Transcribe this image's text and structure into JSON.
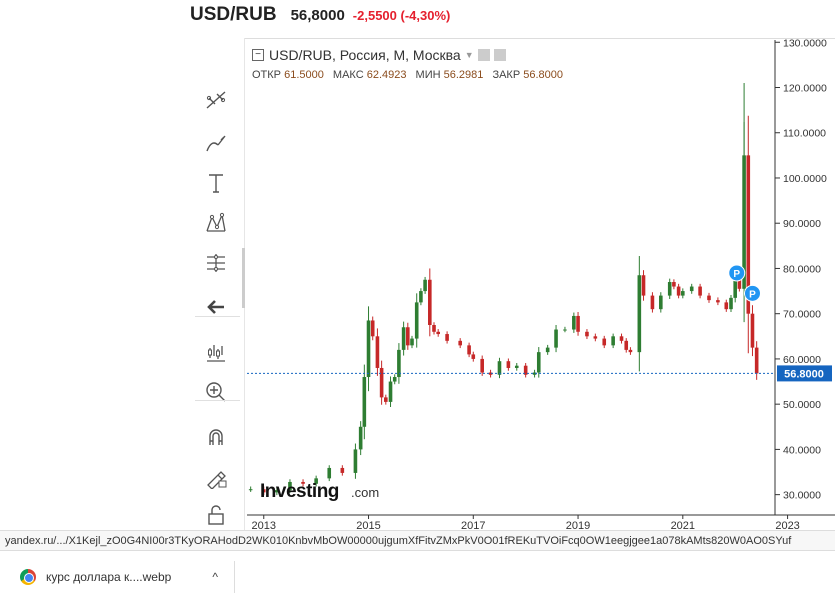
{
  "quote": {
    "symbol": "USD/RUB",
    "price": "56,8000",
    "change": "-2,5500 (-4,30%)",
    "change_color": "#e5202e"
  },
  "legend": {
    "title": "USD/RUB, Россия, M, Москва",
    "open_label": "ОТКР",
    "open": "61.5000",
    "high_label": "МАКС",
    "high": "62.4923",
    "low_label": "МИН",
    "low": "56.2981",
    "close_label": "ЗАКР",
    "close": "56.8000"
  },
  "toolbar": {
    "icons": [
      "trend-line-icon",
      "brush-icon",
      "text-icon",
      "pattern-icon",
      "measure-icon",
      "back-arrow-icon",
      "indicators-icon",
      "zoom-in-icon",
      "magnet-icon",
      "lock-drawings-icon",
      "unlock-icon",
      "eye-icon"
    ]
  },
  "watermark": {
    "brand": "Investing",
    "suffix": ".com"
  },
  "last_price_label": "56.8000",
  "markers": [
    "P",
    "P"
  ],
  "status_url": "yandex.ru/.../X1Kejl_zO0G4NI00r3TKyORAHodD2WK010KnbvMbOW00000ujgumXfFitvZMxPkV0O01fREKuTVOiFcq0OW1eegjgee1a078kAMts820W0AO0SYuf",
  "download": {
    "filename": "курс доллара к....webp"
  },
  "colors": {
    "up": "#2e7d32",
    "down": "#c62828",
    "accent": "#2196f3",
    "price_label_bg": "#1565c0"
  },
  "chart_data": {
    "type": "candlestick",
    "title": "USD/RUB, Россия, M, Москва",
    "y_ticks": [
      "30.0000",
      "40.0000",
      "50.0000",
      "60.0000",
      "70.0000",
      "80.0000",
      "90.0000",
      "100.0000",
      "110.0000",
      "120.0000",
      "130.0000"
    ],
    "x_ticks": [
      "2013",
      "2015",
      "2017",
      "2019",
      "2021",
      "2023"
    ],
    "ylim": [
      25.5,
      130.5
    ],
    "xlim": [
      2012.68,
      2022.76
    ],
    "series_close": [
      [
        2012.75,
        31.2
      ],
      [
        2013.0,
        30.5
      ],
      [
        2013.25,
        31.0
      ],
      [
        2013.5,
        32.8
      ],
      [
        2013.75,
        32.4
      ],
      [
        2014.0,
        33.6
      ],
      [
        2014.25,
        35.9
      ],
      [
        2014.5,
        34.8
      ],
      [
        2014.75,
        40.0
      ],
      [
        2014.85,
        45.0
      ],
      [
        2014.92,
        56.0
      ],
      [
        2015.0,
        68.5
      ],
      [
        2015.08,
        65.0
      ],
      [
        2015.17,
        58.0
      ],
      [
        2015.25,
        51.5
      ],
      [
        2015.33,
        50.5
      ],
      [
        2015.42,
        55.0
      ],
      [
        2015.5,
        56.0
      ],
      [
        2015.58,
        62.0
      ],
      [
        2015.67,
        67.0
      ],
      [
        2015.75,
        63.0
      ],
      [
        2015.83,
        64.5
      ],
      [
        2015.92,
        72.5
      ],
      [
        2016.0,
        75.0
      ],
      [
        2016.08,
        77.5
      ],
      [
        2016.17,
        67.5
      ],
      [
        2016.25,
        66.0
      ],
      [
        2016.33,
        65.5
      ],
      [
        2016.5,
        64.0
      ],
      [
        2016.75,
        63.0
      ],
      [
        2016.92,
        61.0
      ],
      [
        2017.0,
        60.0
      ],
      [
        2017.17,
        57.0
      ],
      [
        2017.33,
        56.5
      ],
      [
        2017.5,
        59.5
      ],
      [
        2017.67,
        58.0
      ],
      [
        2017.83,
        58.5
      ],
      [
        2018.0,
        56.5
      ],
      [
        2018.17,
        57.0
      ],
      [
        2018.25,
        61.5
      ],
      [
        2018.42,
        62.5
      ],
      [
        2018.58,
        66.5
      ],
      [
        2018.75,
        66.5
      ],
      [
        2018.92,
        69.5
      ],
      [
        2019.0,
        66.0
      ],
      [
        2019.17,
        65.0
      ],
      [
        2019.33,
        64.5
      ],
      [
        2019.5,
        63.0
      ],
      [
        2019.67,
        65.0
      ],
      [
        2019.83,
        64.0
      ],
      [
        2019.92,
        62.0
      ],
      [
        2020.0,
        61.5
      ],
      [
        2020.17,
        78.5
      ],
      [
        2020.25,
        74.0
      ],
      [
        2020.42,
        71.0
      ],
      [
        2020.58,
        74.0
      ],
      [
        2020.75,
        77.0
      ],
      [
        2020.83,
        76.0
      ],
      [
        2020.92,
        74.0
      ],
      [
        2021.0,
        75.0
      ],
      [
        2021.17,
        76.0
      ],
      [
        2021.33,
        74.0
      ],
      [
        2021.5,
        73.0
      ],
      [
        2021.67,
        72.5
      ],
      [
        2021.83,
        71.0
      ],
      [
        2021.92,
        73.5
      ],
      [
        2022.0,
        77.5
      ],
      [
        2022.08,
        75.5
      ],
      [
        2022.17,
        105.0
      ],
      [
        2022.25,
        70.0
      ],
      [
        2022.33,
        62.5
      ],
      [
        2022.41,
        56.8
      ]
    ]
  }
}
